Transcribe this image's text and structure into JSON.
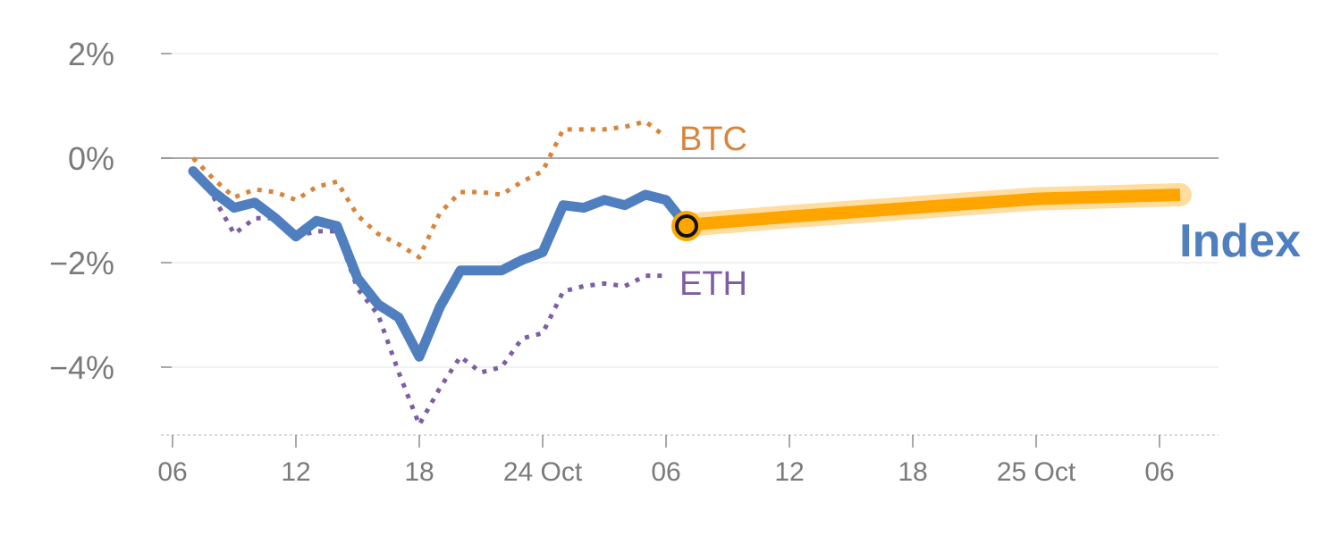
{
  "chart_data": {
    "type": "line",
    "ylim": [
      -5.3,
      2.6
    ],
    "yticks": [
      {
        "value": 2,
        "label": "2%"
      },
      {
        "value": 0,
        "label": "0%"
      },
      {
        "value": -2,
        "label": "−2%"
      },
      {
        "value": -4,
        "label": "−4%"
      }
    ],
    "xticks": [
      {
        "x": 0,
        "label": "06"
      },
      {
        "x": 6,
        "label": "12"
      },
      {
        "x": 12,
        "label": "18"
      },
      {
        "x": 18,
        "label": "24 Oct"
      },
      {
        "x": 24,
        "label": "06"
      },
      {
        "x": 30,
        "label": "12"
      },
      {
        "x": 36,
        "label": "18"
      },
      {
        "x": 42,
        "label": "25 Oct"
      },
      {
        "x": 48,
        "label": "06"
      }
    ],
    "xlim": [
      0,
      51
    ],
    "series": [
      {
        "name": "BTC",
        "color": "#d9843b",
        "style": "dotted",
        "x": [
          1,
          2,
          3,
          4,
          5,
          6,
          7,
          8,
          9,
          10,
          11,
          12,
          13,
          14,
          15,
          16,
          17,
          18,
          19,
          20,
          21,
          22,
          23,
          24
        ],
        "values": [
          0.0,
          -0.4,
          -0.75,
          -0.6,
          -0.65,
          -0.8,
          -0.55,
          -0.45,
          -1.1,
          -1.45,
          -1.65,
          -1.9,
          -1.05,
          -0.65,
          -0.65,
          -0.7,
          -0.45,
          -0.25,
          0.55,
          0.55,
          0.55,
          0.6,
          0.7,
          0.4
        ]
      },
      {
        "name": "ETH",
        "color": "#7e5ea3",
        "style": "dotted",
        "x": [
          1,
          2,
          3,
          4,
          5,
          6,
          7,
          8,
          9,
          10,
          11,
          12,
          13,
          14,
          15,
          16,
          17,
          18,
          19,
          20,
          21,
          22,
          23,
          24
        ],
        "values": [
          -0.2,
          -0.75,
          -1.45,
          -1.15,
          -1.15,
          -1.5,
          -1.4,
          -1.4,
          -2.5,
          -3.0,
          -4.1,
          -5.1,
          -4.4,
          -3.8,
          -4.1,
          -4.0,
          -3.45,
          -3.35,
          -2.55,
          -2.45,
          -2.4,
          -2.45,
          -2.25,
          -2.25
        ]
      },
      {
        "name": "Index",
        "color": "#4f7fbf",
        "style": "solid",
        "x": [
          1,
          2,
          3,
          4,
          5,
          6,
          7,
          8,
          9,
          10,
          11,
          12,
          13,
          14,
          15,
          16,
          17,
          18,
          19,
          20,
          21,
          22,
          23,
          24,
          25
        ],
        "values": [
          -0.25,
          -0.65,
          -0.95,
          -0.85,
          -1.15,
          -1.5,
          -1.2,
          -1.3,
          -2.3,
          -2.8,
          -3.05,
          -3.8,
          -2.85,
          -2.15,
          -2.15,
          -2.15,
          -1.95,
          -1.8,
          -0.9,
          -0.95,
          -0.8,
          -0.9,
          -0.7,
          -0.8,
          -1.3
        ]
      },
      {
        "name": "",
        "color": "#ffa500",
        "style": "forecast",
        "x": [
          25,
          30,
          36,
          42,
          49
        ],
        "values": [
          -1.28,
          -1.12,
          -0.95,
          -0.78,
          -0.7
        ]
      }
    ],
    "current_point": {
      "x": 25,
      "y": -1.3
    }
  },
  "labels": {
    "btc": "BTC",
    "eth": "ETH",
    "index": "Index"
  }
}
